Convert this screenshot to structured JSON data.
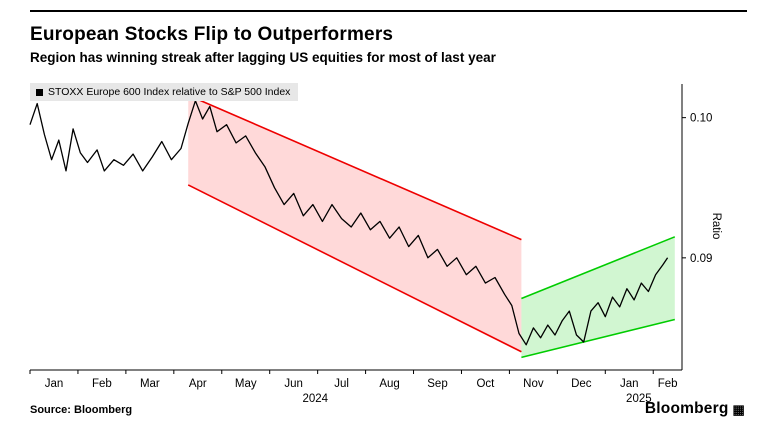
{
  "header": {
    "title": "European Stocks Flip to Outperformers",
    "subtitle": "Region has winning streak after lagging US equities for most of last year"
  },
  "legend": {
    "label": "STOXX Europe 600 Index relative to S&P 500 Index",
    "marker_color": "#000000"
  },
  "footer": {
    "source": "Source: Bloomberg",
    "brand": "Bloomberg",
    "brand_icon": "▦"
  },
  "chart_data": {
    "type": "line",
    "title": "European Stocks Flip to Outperformers",
    "ylabel": "Ratio",
    "xlabel": "",
    "xlim": [
      0,
      13.6
    ],
    "ylim": [
      0.082,
      0.1024
    ],
    "grid": false,
    "legend_position": "top-left",
    "line_color": "#000000",
    "yticks": [
      {
        "value": 0.1,
        "label": "0.10"
      },
      {
        "value": 0.09,
        "label": "0.09"
      }
    ],
    "x_tick_positions": [
      0,
      1,
      2,
      3,
      4,
      5,
      6,
      7,
      8,
      9,
      10,
      11,
      12,
      13
    ],
    "x_months": [
      {
        "label": "Jan",
        "t": 0.5
      },
      {
        "label": "Feb",
        "t": 1.5
      },
      {
        "label": "Mar",
        "t": 2.5
      },
      {
        "label": "Apr",
        "t": 3.5
      },
      {
        "label": "May",
        "t": 4.5
      },
      {
        "label": "Jun",
        "t": 5.5
      },
      {
        "label": "Jul",
        "t": 6.5
      },
      {
        "label": "Aug",
        "t": 7.5
      },
      {
        "label": "Sep",
        "t": 8.5
      },
      {
        "label": "Oct",
        "t": 9.5
      },
      {
        "label": "Nov",
        "t": 10.5
      },
      {
        "label": "Dec",
        "t": 11.5
      },
      {
        "label": "Jan",
        "t": 12.5
      },
      {
        "label": "Feb",
        "t": 13.3
      }
    ],
    "year_labels": [
      {
        "label": "2024",
        "t": 5.95
      },
      {
        "label": "2025",
        "t": 12.7
      }
    ],
    "channels": [
      {
        "name": "downtrend-channel",
        "color": "#ee0000",
        "fill": "rgba(255,0,0,0.15)",
        "x0": 3.3,
        "x1": 10.25,
        "top0": 0.1016,
        "top1": 0.0913,
        "bot0": 0.0952,
        "bot1": 0.0833
      },
      {
        "name": "uptrend-channel",
        "color": "#00cc00",
        "fill": "rgba(0,204,0,0.18)",
        "x0": 10.25,
        "x1": 13.45,
        "top0": 0.0871,
        "top1": 0.0915,
        "bot0": 0.0829,
        "bot1": 0.0856
      }
    ],
    "series": [
      {
        "name": "STOXX Europe 600 Index relative to S&P 500 Index",
        "color": "#000000",
        "points": [
          [
            0,
            0.0995
          ],
          [
            0.15,
            0.101
          ],
          [
            0.3,
            0.0988
          ],
          [
            0.45,
            0.097
          ],
          [
            0.6,
            0.0984
          ],
          [
            0.75,
            0.0962
          ],
          [
            0.9,
            0.0992
          ],
          [
            1.05,
            0.0975
          ],
          [
            1.2,
            0.0968
          ],
          [
            1.4,
            0.0977
          ],
          [
            1.55,
            0.0962
          ],
          [
            1.75,
            0.097
          ],
          [
            1.95,
            0.0966
          ],
          [
            2.15,
            0.0974
          ],
          [
            2.35,
            0.0962
          ],
          [
            2.55,
            0.0972
          ],
          [
            2.75,
            0.0983
          ],
          [
            2.95,
            0.097
          ],
          [
            3.15,
            0.0978
          ],
          [
            3.3,
            0.0996
          ],
          [
            3.45,
            0.1012
          ],
          [
            3.6,
            0.0999
          ],
          [
            3.75,
            0.1008
          ],
          [
            3.9,
            0.099
          ],
          [
            4.1,
            0.0995
          ],
          [
            4.3,
            0.0982
          ],
          [
            4.5,
            0.0987
          ],
          [
            4.7,
            0.0975
          ],
          [
            4.9,
            0.0965
          ],
          [
            5.1,
            0.095
          ],
          [
            5.3,
            0.0938
          ],
          [
            5.5,
            0.0946
          ],
          [
            5.7,
            0.093
          ],
          [
            5.9,
            0.0938
          ],
          [
            6.1,
            0.0926
          ],
          [
            6.3,
            0.0938
          ],
          [
            6.5,
            0.0928
          ],
          [
            6.7,
            0.0922
          ],
          [
            6.9,
            0.0932
          ],
          [
            7.1,
            0.092
          ],
          [
            7.3,
            0.0926
          ],
          [
            7.5,
            0.0914
          ],
          [
            7.7,
            0.0922
          ],
          [
            7.9,
            0.0908
          ],
          [
            8.1,
            0.0916
          ],
          [
            8.3,
            0.09
          ],
          [
            8.5,
            0.0906
          ],
          [
            8.7,
            0.0894
          ],
          [
            8.9,
            0.09
          ],
          [
            9.1,
            0.0888
          ],
          [
            9.3,
            0.0894
          ],
          [
            9.5,
            0.0882
          ],
          [
            9.7,
            0.0886
          ],
          [
            9.9,
            0.0874
          ],
          [
            10.05,
            0.0866
          ],
          [
            10.2,
            0.0846
          ],
          [
            10.35,
            0.0838
          ],
          [
            10.5,
            0.085
          ],
          [
            10.65,
            0.0843
          ],
          [
            10.8,
            0.0852
          ],
          [
            10.95,
            0.0845
          ],
          [
            11.1,
            0.0855
          ],
          [
            11.25,
            0.0862
          ],
          [
            11.4,
            0.0845
          ],
          [
            11.55,
            0.084
          ],
          [
            11.7,
            0.0862
          ],
          [
            11.85,
            0.0868
          ],
          [
            12,
            0.0858
          ],
          [
            12.15,
            0.0872
          ],
          [
            12.3,
            0.0865
          ],
          [
            12.45,
            0.0878
          ],
          [
            12.6,
            0.087
          ],
          [
            12.75,
            0.0882
          ],
          [
            12.9,
            0.0876
          ],
          [
            13.05,
            0.0888
          ],
          [
            13.2,
            0.0895
          ],
          [
            13.3,
            0.09
          ]
        ]
      }
    ]
  }
}
